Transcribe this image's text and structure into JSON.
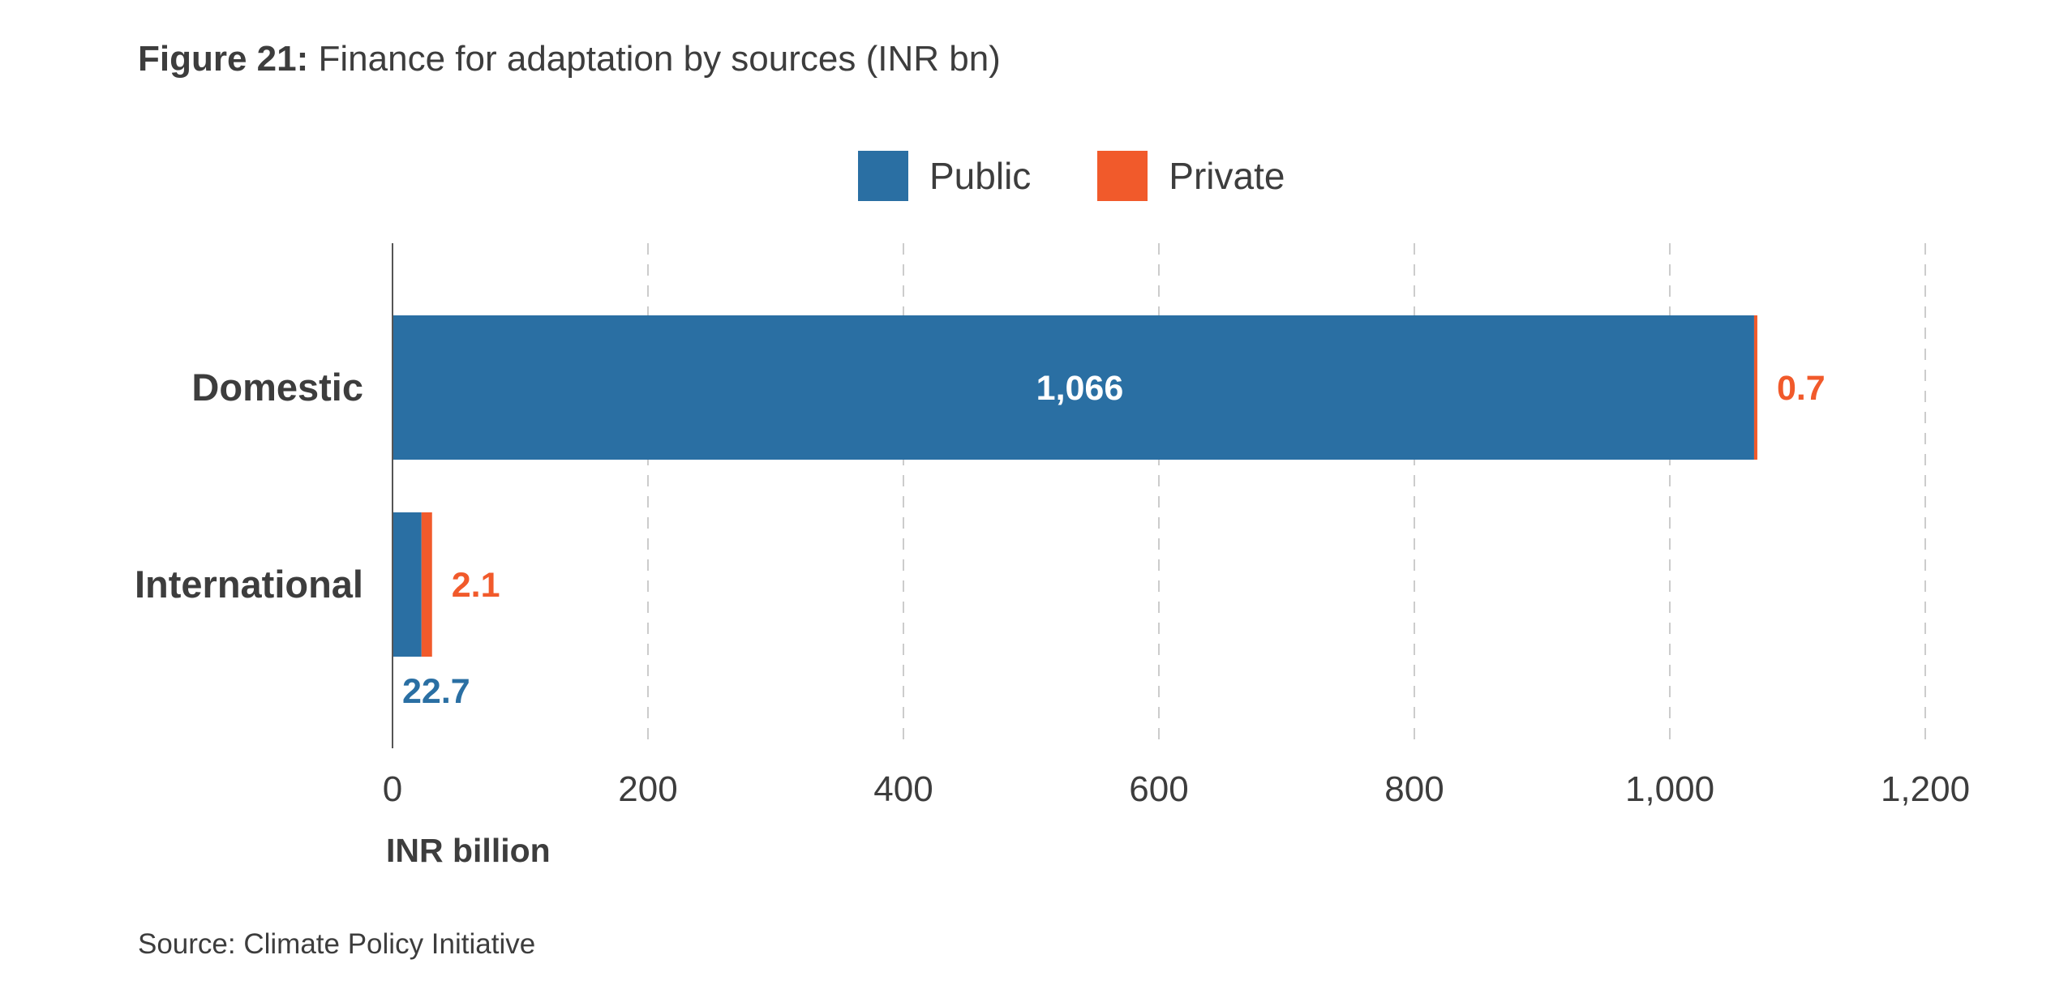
{
  "title": {
    "prefix": "Figure 21:",
    "text": "Finance for adaptation by sources (INR bn)"
  },
  "source": "Source: Climate Policy Initiative",
  "colors": {
    "public": "#2a6fa3",
    "private": "#f15a2b",
    "axis": "#555555",
    "grid": "#cccccc",
    "text": "#3d3d3d"
  },
  "chart_data": {
    "type": "bar",
    "orientation": "horizontal",
    "stacked": true,
    "categories": [
      "Domestic",
      "International"
    ],
    "series": [
      {
        "name": "Public",
        "values": [
          1066,
          22.7
        ],
        "labels": [
          "1,066",
          "22.7"
        ]
      },
      {
        "name": "Private",
        "values": [
          0.7,
          2.1
        ],
        "labels": [
          "0.7",
          "2.1"
        ]
      }
    ],
    "xlabel": "INR billion",
    "xlim": [
      0,
      1200
    ],
    "xticks": [
      0,
      200,
      400,
      600,
      800,
      1000,
      1200
    ],
    "xtick_labels": [
      "0",
      "200",
      "400",
      "600",
      "800",
      "1,000",
      "1,200"
    ],
    "grid": true,
    "legend": "top-center"
  }
}
